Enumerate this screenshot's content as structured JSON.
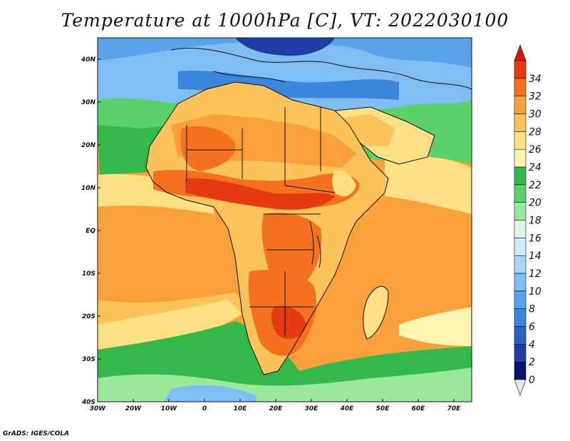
{
  "title": "Temperature at 1000hPa [C], VT: 2022030100",
  "credit": "GrADS: IGES/COLA",
  "map": {
    "lon_range": [
      -30,
      75
    ],
    "lat_range": [
      -40,
      45
    ],
    "x_ticks": [
      "30W",
      "20W",
      "10W",
      "0",
      "10E",
      "20E",
      "30E",
      "40E",
      "50E",
      "60E",
      "70E"
    ],
    "y_ticks": [
      "40N",
      "30N",
      "20N",
      "10N",
      "EQ",
      "10S",
      "20S",
      "30S",
      "40S"
    ]
  },
  "colorbar": {
    "levels": [
      "0",
      "2",
      "4",
      "6",
      "8",
      "10",
      "12",
      "14",
      "16",
      "18",
      "20",
      "22",
      "24",
      "26",
      "28",
      "30",
      "32",
      "34"
    ],
    "colors": [
      "#0f0f6e",
      "#1f3ea8",
      "#2a62c8",
      "#3a86dc",
      "#5aa3ea",
      "#7fbdf2",
      "#a6d6f8",
      "#cdeefa",
      "#dff7e3",
      "#9ae89a",
      "#5ad16a",
      "#35b84b",
      "#fdf4b0",
      "#fde083",
      "#fbc35a",
      "#f9a03a",
      "#f4711f",
      "#e63a12"
    ],
    "over_color": "#d01a0a",
    "under_color": "#e6e6f7"
  }
}
